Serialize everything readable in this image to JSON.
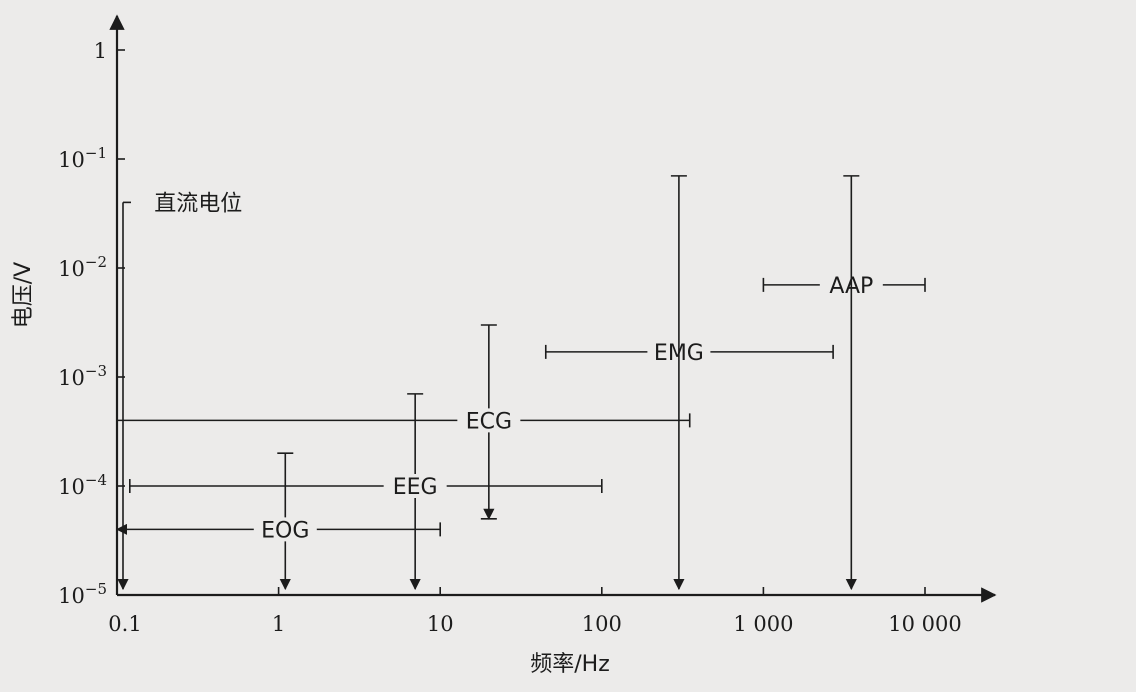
{
  "chart_data": {
    "type": "range",
    "xlabel": "频率/Hz",
    "ylabel": "电压/V",
    "x_scale": "log",
    "y_scale": "log",
    "xlim": [
      0.1,
      10000
    ],
    "ylim": [
      1e-05,
      1
    ],
    "x_ticks": [
      {
        "value": 0.1,
        "label": "0.1"
      },
      {
        "value": 1,
        "label": "1"
      },
      {
        "value": 10,
        "label": "10"
      },
      {
        "value": 100,
        "label": "100"
      },
      {
        "value": 1000,
        "label": "1 000"
      },
      {
        "value": 10000,
        "label": "10 000"
      }
    ],
    "y_ticks": [
      {
        "value": 1,
        "base": "",
        "exp": "",
        "plain": "1"
      },
      {
        "value": 0.1,
        "base": "10",
        "exp": "−1"
      },
      {
        "value": 0.01,
        "base": "10",
        "exp": "−2"
      },
      {
        "value": 0.001,
        "base": "10",
        "exp": "−3"
      },
      {
        "value": 0.0001,
        "base": "10",
        "exp": "−4"
      },
      {
        "value": 1e-05,
        "base": "10",
        "exp": "−5"
      }
    ],
    "series": [
      {
        "name": "直流电位",
        "freq": [
          0.1,
          0.1
        ],
        "volt": [
          1e-05,
          0.04
        ],
        "vertical_arrow": "down",
        "freq_arrow": "none",
        "label_at": [
          0.17,
          0.04
        ],
        "label_anchor": "start"
      },
      {
        "name": "EOG",
        "freq": [
          0.1,
          10
        ],
        "volt": [
          1e-05,
          0.0002
        ],
        "label_at": [
          1.1,
          4e-05
        ],
        "freq_arrow": "left"
      },
      {
        "name": "EEG",
        "freq": [
          0.12,
          100
        ],
        "volt": [
          1e-05,
          0.0007
        ],
        "label_at": [
          7,
          0.0001
        ],
        "freq_arrow": "none"
      },
      {
        "name": "ECG",
        "freq": [
          0.1,
          350
        ],
        "volt": [
          5e-05,
          0.003
        ],
        "label_at": [
          20,
          0.0004
        ],
        "freq_arrow": "none"
      },
      {
        "name": "EMG",
        "freq": [
          45,
          2700
        ],
        "volt": [
          1e-05,
          0.07
        ],
        "label_at": [
          300,
          0.0017
        ],
        "freq_arrow": "none"
      },
      {
        "name": "AAP",
        "freq": [
          1000,
          10000
        ],
        "volt": [
          1e-05,
          0.07
        ],
        "label_at": [
          3500,
          0.007
        ],
        "freq_arrow": "none"
      }
    ]
  }
}
